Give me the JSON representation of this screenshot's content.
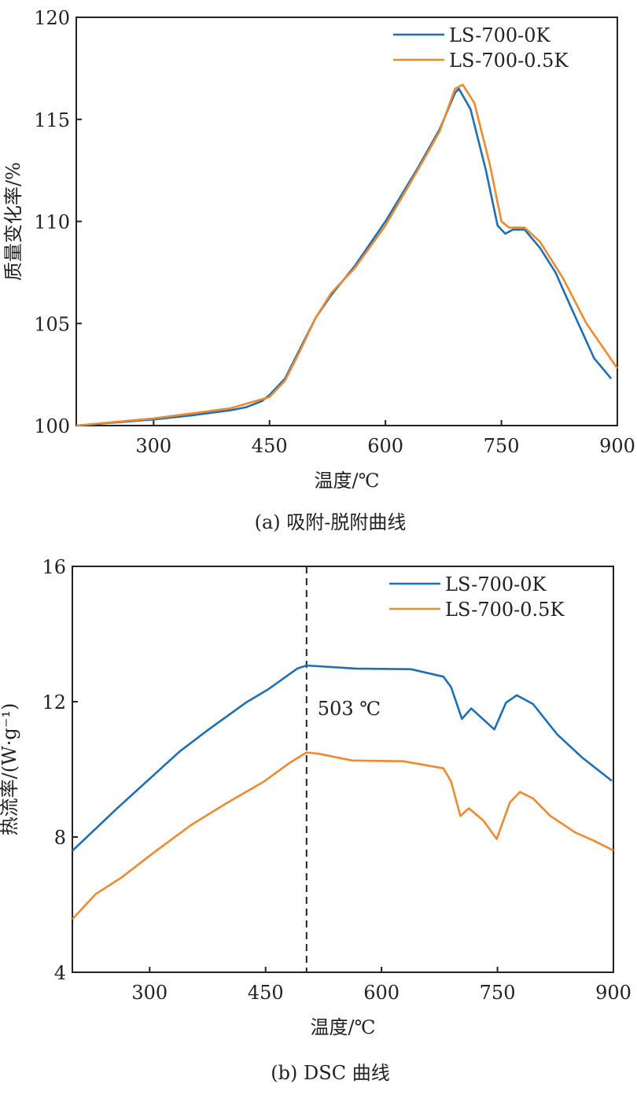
{
  "chart_data": [
    {
      "type": "line",
      "caption": "(a) 吸附-脱附曲线",
      "xlabel": "温度/℃",
      "ylabel": "质量变化率/%",
      "xlim": [
        200,
        900
      ],
      "ylim": [
        100,
        120
      ],
      "xticks": [
        300,
        450,
        600,
        750,
        900
      ],
      "yticks": [
        100,
        105,
        110,
        115,
        120
      ],
      "legend_position": "top-right",
      "series": [
        {
          "name": "LS-700-0K",
          "color": "#1f6fb4",
          "x": [
            200,
            300,
            350,
            400,
            420,
            440,
            450,
            470,
            490,
            510,
            530,
            560,
            600,
            640,
            670,
            690,
            695,
            710,
            730,
            745,
            755,
            765,
            780,
            800,
            820,
            840,
            870,
            892
          ],
          "y": [
            100,
            100.3,
            100.5,
            100.75,
            100.9,
            101.2,
            101.5,
            102.3,
            103.8,
            105.3,
            106.4,
            107.8,
            110,
            112.5,
            114.5,
            116.3,
            116.5,
            115.5,
            112.5,
            109.8,
            109.4,
            109.6,
            109.6,
            108.7,
            107.5,
            105.8,
            103.3,
            102.3
          ]
        },
        {
          "name": "LS-700-0.5K",
          "color": "#ee8a2f",
          "x": [
            200,
            300,
            400,
            450,
            470,
            490,
            510,
            530,
            560,
            600,
            640,
            670,
            690,
            700,
            715,
            735,
            750,
            760,
            780,
            800,
            830,
            860,
            900
          ],
          "y": [
            100,
            100.35,
            100.85,
            101.4,
            102.2,
            103.7,
            105.3,
            106.5,
            107.7,
            109.8,
            112.4,
            114.4,
            116.5,
            116.7,
            115.8,
            112.8,
            110,
            109.7,
            109.7,
            109.0,
            107.2,
            105.0,
            102.8
          ]
        }
      ]
    },
    {
      "type": "line",
      "caption": "(b) DSC 曲线",
      "xlabel": "温度/℃",
      "ylabel": "热流率/(W·g⁻¹)",
      "xlim": [
        200,
        900
      ],
      "ylim": [
        4,
        16
      ],
      "xticks": [
        300,
        450,
        600,
        750,
        900
      ],
      "yticks": [
        4,
        8,
        12,
        16
      ],
      "legend_position": "top-right",
      "annotation": {
        "text": "503 ℃",
        "x": 503
      },
      "series": [
        {
          "name": "LS-700-0K",
          "color": "#1f6fb4",
          "x": [
            200,
            259,
            339,
            377,
            425,
            453,
            491,
            503,
            567,
            638,
            680,
            690,
            704,
            716,
            746,
            761,
            775,
            796,
            827,
            860,
            898
          ],
          "y": [
            7.59,
            8.87,
            10.53,
            11.19,
            11.98,
            12.36,
            12.98,
            13.07,
            12.98,
            12.96,
            12.74,
            12.43,
            11.49,
            11.8,
            11.18,
            11.97,
            12.19,
            11.93,
            11.04,
            10.34,
            9.66
          ]
        },
        {
          "name": "LS-700-0.5K",
          "color": "#ee8a2f",
          "x": [
            200,
            230,
            264,
            306,
            354,
            401,
            448,
            481,
            503,
            519,
            562,
            628,
            680,
            690,
            702,
            713,
            732,
            749,
            766,
            779,
            796,
            818,
            851,
            874,
            900
          ],
          "y": [
            5.57,
            6.31,
            6.81,
            7.55,
            8.36,
            9.02,
            9.64,
            10.19,
            10.5,
            10.46,
            10.26,
            10.24,
            10.03,
            9.64,
            8.62,
            8.85,
            8.48,
            7.94,
            9.02,
            9.33,
            9.14,
            8.63,
            8.13,
            7.9,
            7.6
          ]
        }
      ]
    }
  ]
}
